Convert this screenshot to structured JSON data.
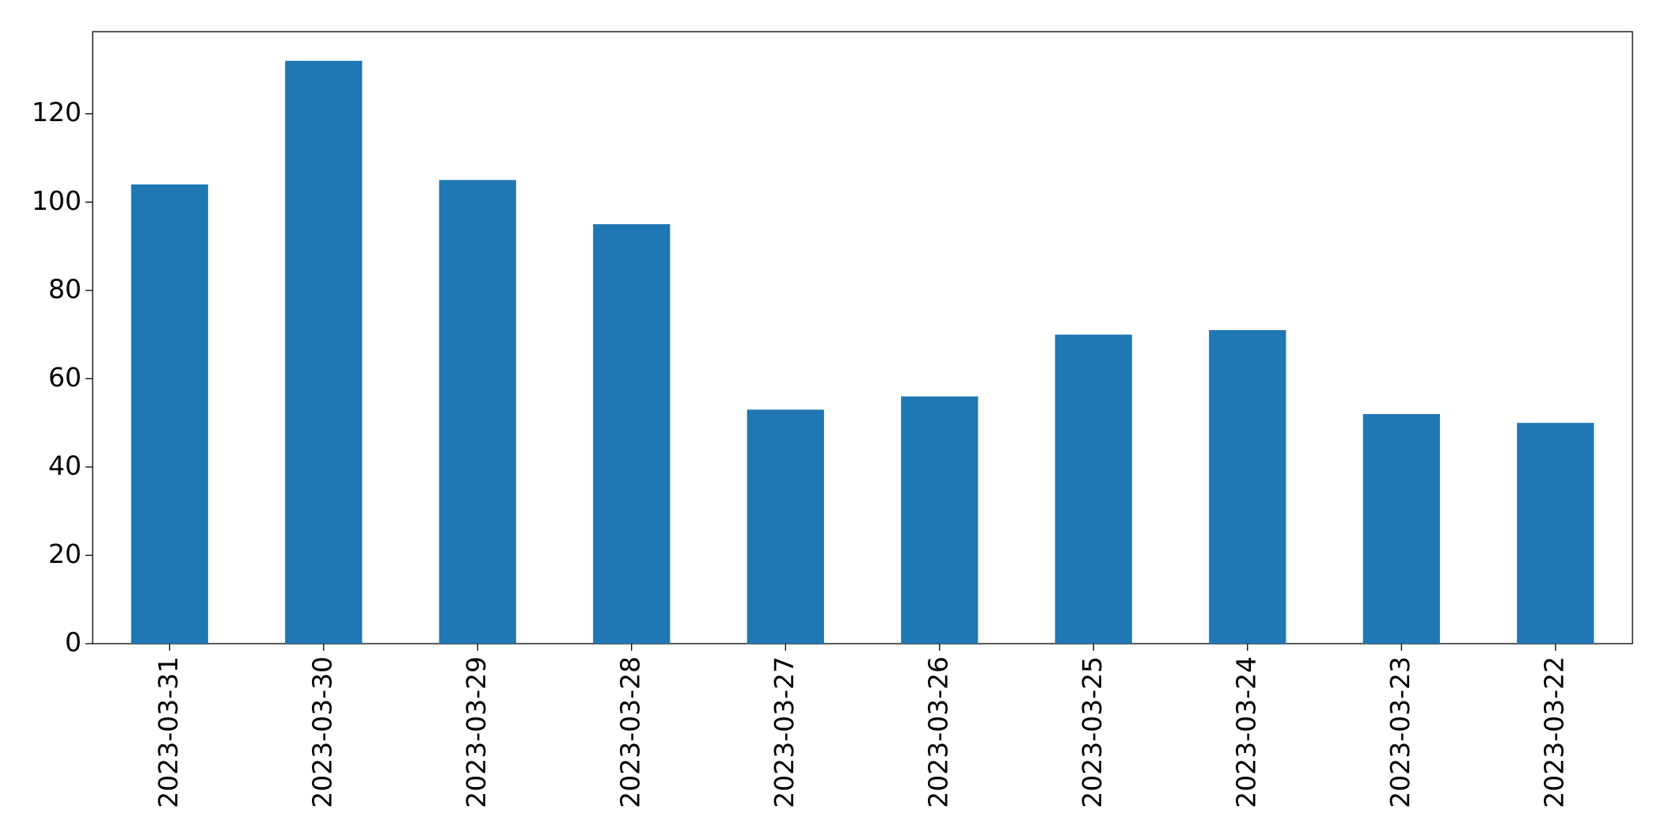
{
  "chart_data": {
    "type": "bar",
    "categories": [
      "2023-03-31",
      "2023-03-30",
      "2023-03-29",
      "2023-03-28",
      "2023-03-27",
      "2023-03-26",
      "2023-03-25",
      "2023-03-24",
      "2023-03-23",
      "2023-03-22"
    ],
    "values": [
      104,
      132,
      105,
      95,
      53,
      56,
      70,
      71,
      52,
      50
    ],
    "color": "#1f77b4",
    "ylim": [
      0,
      138.6
    ],
    "yticks": [
      0,
      20,
      40,
      60,
      80,
      100,
      120
    ],
    "grid": false
  }
}
